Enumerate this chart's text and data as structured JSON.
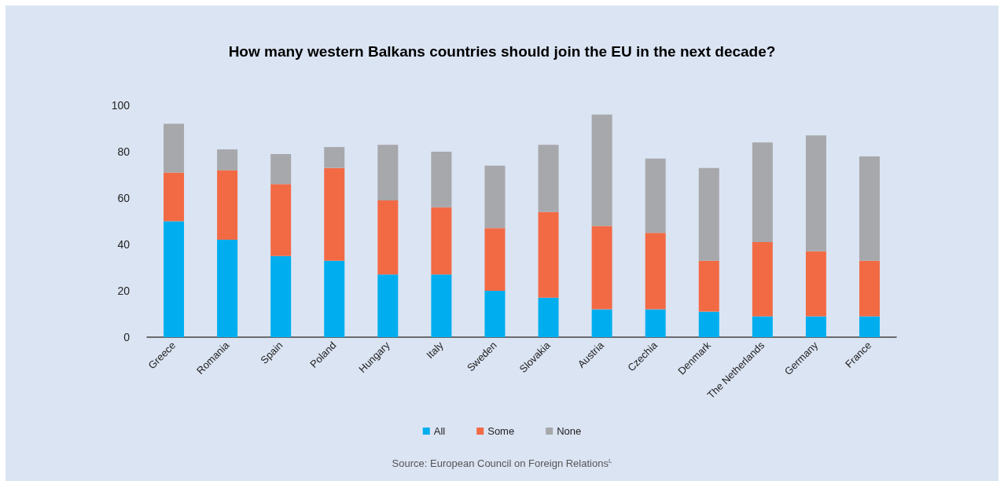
{
  "chart_data": {
    "type": "bar",
    "title": "How many western Balkans countries should join the EU in the next decade?",
    "categories": [
      "Greece",
      "Romania",
      "Spain",
      "Poland",
      "Hungary",
      "Italy",
      "Sweden",
      "Slovakia",
      "Austria",
      "Czechia",
      "Denmark",
      "The Netherlands",
      "Germany",
      "France"
    ],
    "series": [
      {
        "name": "All",
        "color": "#00aeef",
        "values": [
          50,
          42,
          35,
          33,
          27,
          27,
          20,
          17,
          12,
          12,
          11,
          9,
          9,
          9
        ]
      },
      {
        "name": "Some",
        "color": "#f26a44",
        "values": [
          21,
          30,
          31,
          40,
          32,
          29,
          27,
          37,
          36,
          33,
          22,
          32,
          28,
          24
        ]
      },
      {
        "name": "None",
        "color": "#a7a8ab",
        "values": [
          21,
          9,
          13,
          9,
          24,
          24,
          27,
          29,
          48,
          32,
          40,
          43,
          50,
          45
        ]
      }
    ],
    "stacked": true,
    "ylim": [
      0,
      100
    ],
    "yticks": [
      0,
      20,
      40,
      60,
      80,
      100
    ],
    "grid": false,
    "legend": "bottom",
    "annotations": [
      "Source: European Council on Foreign Relations$^{L}$"
    ]
  }
}
